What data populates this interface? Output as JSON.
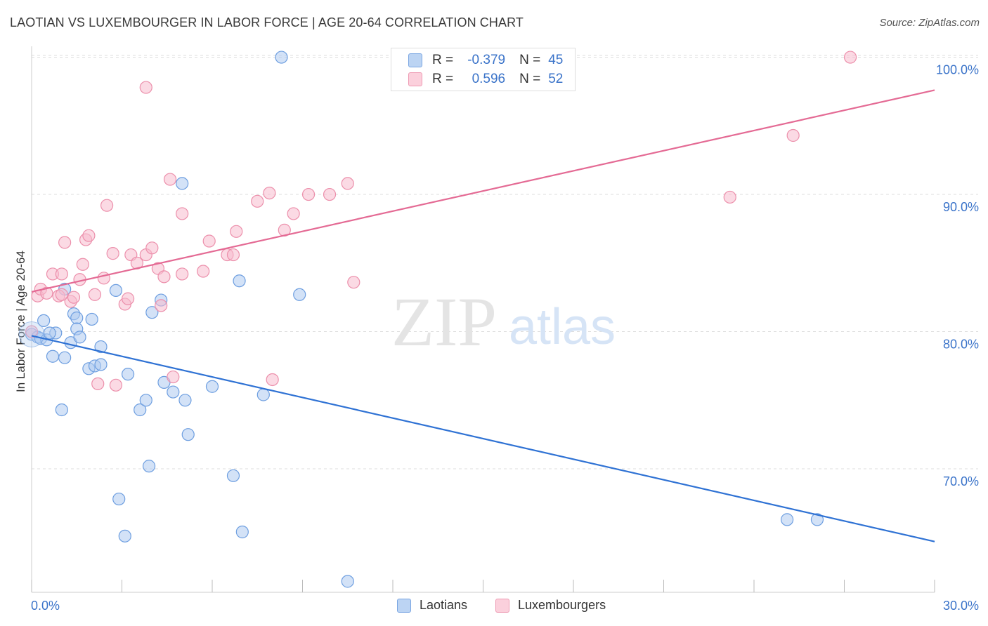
{
  "title": "LAOTIAN VS LUXEMBOURGER IN LABOR FORCE | AGE 20-64 CORRELATION CHART",
  "source": "Source: ZipAtlas.com",
  "watermark": {
    "zip": "ZIP",
    "atlas": "atlas"
  },
  "colors": {
    "blue_fill": "#aecbf0",
    "blue_stroke": "#6d9ee0",
    "blue_line": "#2f72d4",
    "pink_fill": "#f7bccd",
    "pink_stroke": "#ec8fab",
    "pink_line": "#e46a94",
    "tick_text": "#3a73c9",
    "grid": "#dddddd"
  },
  "legend_top": [
    {
      "r_label": "R =",
      "r_value": "-0.379",
      "n_label": "N =",
      "n_value": "45"
    },
    {
      "r_label": "R =",
      "r_value": "0.596",
      "n_label": "N =",
      "n_value": "52"
    }
  ],
  "chart_data": {
    "type": "scatter",
    "title": "LAOTIAN VS LUXEMBOURGER IN LABOR FORCE | AGE 20-64 CORRELATION CHART",
    "xlabel": "",
    "ylabel": "In Labor Force | Age 20-64",
    "xlim": [
      0,
      30
    ],
    "ylim": [
      61,
      101
    ],
    "x_tick_labels": [
      "0.0%",
      "30.0%"
    ],
    "y_ticks": [
      70,
      80,
      90,
      100
    ],
    "y_tick_labels": [
      "70.0%",
      "80.0%",
      "90.0%",
      "100.0%"
    ],
    "grid": true,
    "legend": "bottom-center",
    "series": [
      {
        "name": "Laotians",
        "color": "#6d9ee0",
        "trend": {
          "x": [
            0,
            30
          ],
          "y": [
            79.7,
            64.7
          ]
        },
        "points": [
          [
            0.0,
            79.8
          ],
          [
            0.2,
            79.6
          ],
          [
            0.3,
            79.5
          ],
          [
            0.4,
            80.8
          ],
          [
            0.5,
            79.4
          ],
          [
            0.7,
            78.2
          ],
          [
            0.8,
            79.9
          ],
          [
            1.1,
            78.1
          ],
          [
            1.1,
            83.1
          ],
          [
            1.3,
            79.2
          ],
          [
            1.4,
            81.3
          ],
          [
            1.5,
            81.0
          ],
          [
            1.5,
            80.2
          ],
          [
            1.6,
            79.6
          ],
          [
            1.9,
            77.3
          ],
          [
            2.0,
            80.9
          ],
          [
            2.1,
            77.5
          ],
          [
            2.3,
            77.6
          ],
          [
            2.3,
            78.9
          ],
          [
            2.8,
            83.0
          ],
          [
            2.9,
            67.8
          ],
          [
            3.1,
            65.1
          ],
          [
            3.2,
            76.9
          ],
          [
            3.6,
            74.3
          ],
          [
            3.8,
            75.0
          ],
          [
            3.9,
            70.2
          ],
          [
            4.0,
            81.4
          ],
          [
            4.3,
            82.3
          ],
          [
            4.4,
            76.3
          ],
          [
            4.7,
            75.6
          ],
          [
            5.0,
            90.8
          ],
          [
            5.1,
            75.0
          ],
          [
            5.2,
            72.5
          ],
          [
            6.0,
            76.0
          ],
          [
            6.7,
            69.5
          ],
          [
            6.9,
            83.7
          ],
          [
            7.0,
            65.4
          ],
          [
            7.7,
            75.4
          ],
          [
            8.3,
            100.0
          ],
          [
            8.9,
            82.7
          ],
          [
            10.5,
            61.8
          ],
          [
            25.1,
            66.3
          ],
          [
            26.1,
            66.3
          ],
          [
            0.6,
            79.9
          ],
          [
            1.0,
            74.3
          ]
        ]
      },
      {
        "name": "Luxembourgers",
        "color": "#ec8fab",
        "trend": {
          "x": [
            0,
            30
          ],
          "y": [
            82.9,
            97.6
          ]
        },
        "points": [
          [
            0.0,
            80.0
          ],
          [
            0.2,
            82.6
          ],
          [
            0.3,
            83.1
          ],
          [
            0.5,
            82.8
          ],
          [
            0.7,
            84.2
          ],
          [
            0.9,
            82.6
          ],
          [
            1.0,
            84.2
          ],
          [
            1.1,
            86.5
          ],
          [
            1.3,
            82.2
          ],
          [
            1.4,
            82.5
          ],
          [
            1.6,
            83.8
          ],
          [
            1.7,
            84.9
          ],
          [
            1.8,
            86.7
          ],
          [
            1.9,
            87.0
          ],
          [
            2.1,
            82.7
          ],
          [
            2.2,
            76.2
          ],
          [
            2.4,
            83.9
          ],
          [
            2.5,
            89.2
          ],
          [
            2.7,
            85.7
          ],
          [
            2.8,
            76.1
          ],
          [
            3.1,
            82.0
          ],
          [
            3.2,
            82.4
          ],
          [
            3.3,
            85.6
          ],
          [
            3.5,
            85.0
          ],
          [
            3.8,
            85.6
          ],
          [
            3.8,
            97.8
          ],
          [
            4.0,
            86.1
          ],
          [
            4.2,
            84.6
          ],
          [
            4.3,
            81.9
          ],
          [
            4.4,
            84.0
          ],
          [
            4.6,
            91.1
          ],
          [
            4.7,
            76.7
          ],
          [
            5.0,
            84.2
          ],
          [
            5.0,
            88.6
          ],
          [
            5.7,
            84.4
          ],
          [
            5.9,
            86.6
          ],
          [
            6.5,
            85.6
          ],
          [
            6.7,
            85.6
          ],
          [
            6.8,
            87.3
          ],
          [
            7.5,
            89.5
          ],
          [
            7.9,
            90.1
          ],
          [
            8.0,
            76.5
          ],
          [
            8.4,
            87.4
          ],
          [
            8.7,
            88.6
          ],
          [
            9.2,
            90.0
          ],
          [
            9.9,
            90.0
          ],
          [
            10.5,
            90.8
          ],
          [
            10.7,
            83.6
          ],
          [
            23.2,
            89.8
          ],
          [
            25.3,
            94.3
          ],
          [
            27.2,
            100.0
          ],
          [
            1.0,
            82.7
          ]
        ]
      }
    ]
  }
}
